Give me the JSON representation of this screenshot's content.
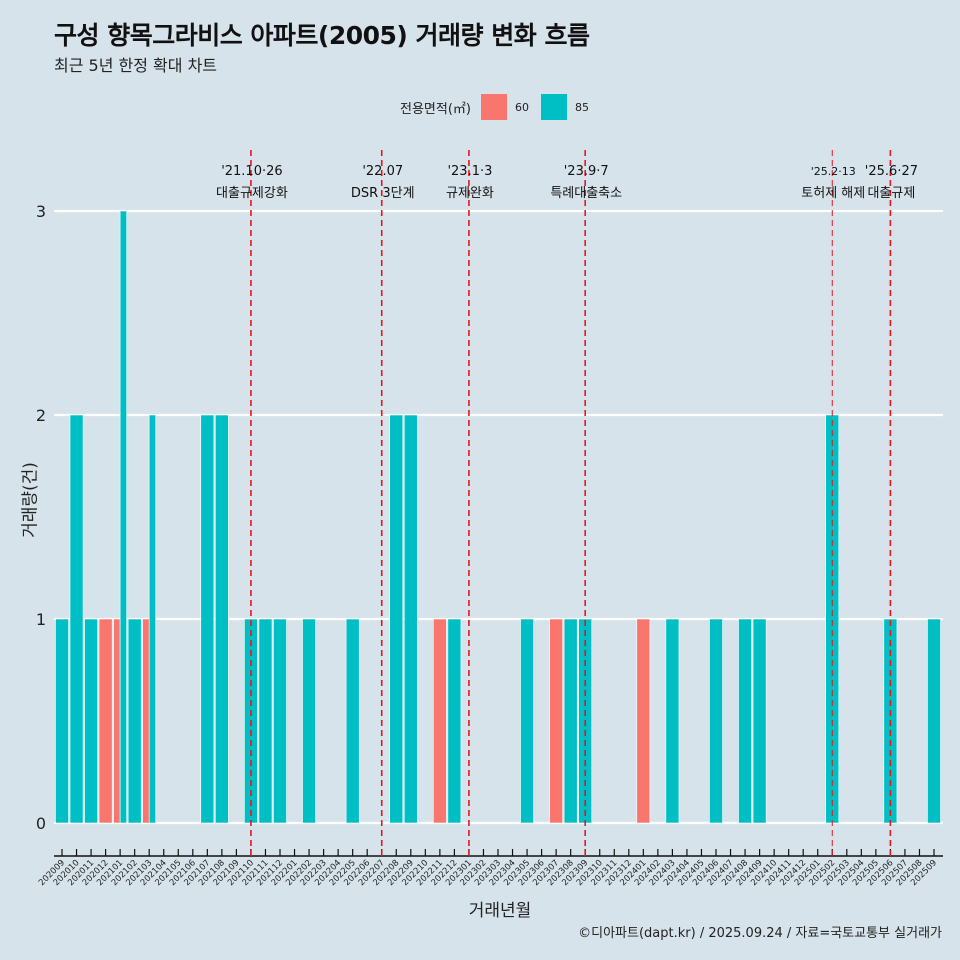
{
  "header": {
    "title": "구성 향목그라비스 아파트(2005) 거래량 변화 흐름",
    "subtitle": "최근 5년 한정 확대 차트"
  },
  "legend": {
    "title": "전용면적(㎡)",
    "items": [
      {
        "label": "60",
        "color": "#f8766d"
      },
      {
        "label": "85",
        "color": "#00bfc4"
      }
    ]
  },
  "footer": "©디아파트(dapt.kr) / 2025.09.24 / 자료=국토교통부 실거래가",
  "chart_data": {
    "type": "bar",
    "title": "구성 향목그라비스 아파트(2005) 거래량 변화 흐름",
    "subtitle": "최근 5년 한정 확대 차트",
    "xlabel": "거래년월",
    "ylabel": "거래량(건)",
    "ylim": [
      0,
      3
    ],
    "yticks": [
      0,
      1,
      2,
      3
    ],
    "grid": true,
    "legend_position": "top",
    "categories": [
      "202009",
      "202010",
      "202011",
      "202012",
      "202101",
      "202102",
      "202103",
      "202104",
      "202105",
      "202106",
      "202107",
      "202108",
      "202109",
      "202110",
      "202111",
      "202112",
      "202201",
      "202202",
      "202203",
      "202204",
      "202205",
      "202206",
      "202207",
      "202208",
      "202209",
      "202210",
      "202211",
      "202212",
      "202301",
      "202302",
      "202303",
      "202304",
      "202305",
      "202306",
      "202307",
      "202308",
      "202309",
      "202310",
      "202311",
      "202312",
      "202401",
      "202402",
      "202403",
      "202404",
      "202405",
      "202406",
      "202407",
      "202408",
      "202409",
      "202410",
      "202411",
      "202412",
      "202501",
      "202502",
      "202503",
      "202504",
      "202505",
      "202506",
      "202507",
      "202508",
      "202509"
    ],
    "series": [
      {
        "name": "60",
        "color": "#f8766d",
        "values": [
          0,
          0,
          0,
          1,
          1,
          0,
          1,
          0,
          0,
          0,
          0,
          0,
          0,
          0,
          0,
          0,
          0,
          0,
          0,
          0,
          0,
          0,
          0,
          0,
          0,
          0,
          1,
          0,
          0,
          0,
          0,
          0,
          0,
          0,
          1,
          0,
          0,
          0,
          0,
          0,
          1,
          0,
          0,
          0,
          0,
          0,
          0,
          0,
          0,
          0,
          0,
          0,
          0,
          0,
          0,
          0,
          0,
          0,
          0,
          0,
          0
        ]
      },
      {
        "name": "85",
        "color": "#00bfc4",
        "values": [
          1,
          2,
          1,
          0,
          3,
          1,
          2,
          0,
          0,
          0,
          2,
          2,
          0,
          1,
          1,
          1,
          0,
          1,
          0,
          0,
          1,
          0,
          0,
          2,
          2,
          0,
          0,
          1,
          0,
          0,
          0,
          0,
          1,
          0,
          0,
          1,
          1,
          0,
          0,
          0,
          0,
          0,
          1,
          0,
          0,
          1,
          0,
          1,
          1,
          0,
          0,
          0,
          0,
          2,
          0,
          0,
          0,
          1,
          0,
          0,
          1
        ]
      }
    ],
    "annotations": [
      {
        "month": "202110",
        "date": "'21.10·26",
        "label": "대출규제강화"
      },
      {
        "month": "202207",
        "date": "'22.07",
        "label": "DSR 3단계"
      },
      {
        "month": "202301",
        "date": "'23.1·3",
        "label": "규제완화"
      },
      {
        "month": "202309",
        "date": "'23.9·7",
        "label": "특례대출축소"
      },
      {
        "month": "202502",
        "date": "'25.2·13",
        "label": "토허제 해제"
      },
      {
        "month": "202506",
        "date": "'25.6·27",
        "label": "대출규제"
      }
    ]
  }
}
